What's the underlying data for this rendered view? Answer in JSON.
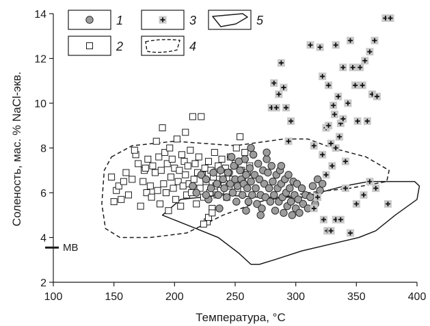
{
  "chart_data": {
    "type": "scatter",
    "xlabel": "Температура, °С",
    "ylabel": "Соленость, мас. % NaCl-экв.",
    "xlim": [
      100,
      400
    ],
    "ylim": [
      2,
      14
    ],
    "xticks": [
      "100",
      "150",
      "200",
      "250",
      "300",
      "350",
      "400"
    ],
    "yticks": [
      "2",
      "4",
      "6",
      "8",
      "10",
      "12",
      "14"
    ],
    "grid": false,
    "legend": {
      "placement": "top-left",
      "entries": [
        "1",
        "2",
        "3",
        "4",
        "5"
      ]
    },
    "reference_marks": [
      {
        "label": "МВ",
        "y": 3.55
      }
    ],
    "series": [
      {
        "name": "1",
        "marker": "circle",
        "points": [
          [
            215,
            6.3
          ],
          [
            218,
            6.0
          ],
          [
            222,
            6.8
          ],
          [
            226,
            6.6
          ],
          [
            228,
            5.7
          ],
          [
            230,
            6.2
          ],
          [
            232,
            6.9
          ],
          [
            235,
            6.4
          ],
          [
            236,
            5.9
          ],
          [
            238,
            7.0
          ],
          [
            240,
            6.6
          ],
          [
            241,
            6.2
          ],
          [
            243,
            5.8
          ],
          [
            245,
            6.9
          ],
          [
            246,
            6.4
          ],
          [
            248,
            6.0
          ],
          [
            249,
            7.2
          ],
          [
            250,
            6.6
          ],
          [
            251,
            5.6
          ],
          [
            252,
            6.3
          ],
          [
            254,
            7.0
          ],
          [
            255,
            6.6
          ],
          [
            256,
            5.9
          ],
          [
            257,
            6.4
          ],
          [
            258,
            7.5
          ],
          [
            259,
            6.8
          ],
          [
            260,
            6.2
          ],
          [
            261,
            5.6
          ],
          [
            262,
            7.1
          ],
          [
            263,
            6.5
          ],
          [
            264,
            5.9
          ],
          [
            265,
            7.7
          ],
          [
            266,
            6.8
          ],
          [
            267,
            6.2
          ],
          [
            268,
            5.5
          ],
          [
            269,
            7.3
          ],
          [
            270,
            6.6
          ],
          [
            271,
            5.9
          ],
          [
            272,
            5.3
          ],
          [
            273,
            7.0
          ],
          [
            274,
            6.4
          ],
          [
            275,
            5.8
          ],
          [
            276,
            7.5
          ],
          [
            277,
            6.9
          ],
          [
            278,
            6.2
          ],
          [
            279,
            5.6
          ],
          [
            280,
            7.2
          ],
          [
            281,
            6.5
          ],
          [
            282,
            5.9
          ],
          [
            283,
            5.2
          ],
          [
            284,
            6.8
          ],
          [
            285,
            6.2
          ],
          [
            286,
            5.6
          ],
          [
            287,
            7.0
          ],
          [
            288,
            6.4
          ],
          [
            289,
            5.8
          ],
          [
            290,
            5.1
          ],
          [
            291,
            6.6
          ],
          [
            292,
            6.0
          ],
          [
            293,
            5.4
          ],
          [
            294,
            6.8
          ],
          [
            295,
            6.2
          ],
          [
            296,
            5.6
          ],
          [
            297,
            5.0
          ],
          [
            298,
            6.5
          ],
          [
            299,
            5.9
          ],
          [
            300,
            5.3
          ],
          [
            301,
            6.4
          ],
          [
            302,
            5.7
          ],
          [
            303,
            5.1
          ],
          [
            305,
            6.2
          ],
          [
            306,
            5.5
          ],
          [
            308,
            5.9
          ],
          [
            310,
            5.3
          ],
          [
            312,
            5.8
          ],
          [
            314,
            6.3
          ],
          [
            316,
            5.5
          ],
          [
            318,
            6.6
          ],
          [
            320,
            6.1
          ],
          [
            322,
            6.4
          ],
          [
            247,
            7.6
          ],
          [
            253,
            7.4
          ],
          [
            263,
            8.0
          ],
          [
            276,
            7.8
          ],
          [
            288,
            7.2
          ],
          [
            259,
            5.2
          ],
          [
            271,
            5.0
          ],
          [
            237,
            5.3
          ],
          [
            244,
            6.9
          ],
          [
            226,
            5.9
          ]
        ]
      },
      {
        "name": "2",
        "marker": "square",
        "points": [
          [
            148,
            6.7
          ],
          [
            150,
            5.6
          ],
          [
            152,
            6.1
          ],
          [
            154,
            6.3
          ],
          [
            156,
            5.7
          ],
          [
            158,
            6.5
          ],
          [
            160,
            6.9
          ],
          [
            162,
            5.9
          ],
          [
            165,
            6.6
          ],
          [
            168,
            7.7
          ],
          [
            170,
            7.3
          ],
          [
            172,
            5.4
          ],
          [
            174,
            6.5
          ],
          [
            175,
            7.0
          ],
          [
            177,
            6.0
          ],
          [
            178,
            7.5
          ],
          [
            180,
            6.3
          ],
          [
            181,
            5.8
          ],
          [
            182,
            7.2
          ],
          [
            184,
            6.9
          ],
          [
            185,
            8.3
          ],
          [
            186,
            6.1
          ],
          [
            187,
            7.6
          ],
          [
            188,
            5.5
          ],
          [
            189,
            7.0
          ],
          [
            190,
            8.9
          ],
          [
            191,
            6.4
          ],
          [
            192,
            7.8
          ],
          [
            193,
            6.0
          ],
          [
            194,
            7.3
          ],
          [
            195,
            5.2
          ],
          [
            196,
            8.0
          ],
          [
            197,
            6.7
          ],
          [
            198,
            7.5
          ],
          [
            199,
            6.2
          ],
          [
            200,
            7.1
          ],
          [
            201,
            5.7
          ],
          [
            202,
            8.4
          ],
          [
            203,
            6.5
          ],
          [
            204,
            7.0
          ],
          [
            205,
            5.4
          ],
          [
            206,
            7.7
          ],
          [
            207,
            6.3
          ],
          [
            208,
            7.4
          ],
          [
            209,
            6.8
          ],
          [
            210,
            5.9
          ],
          [
            211,
            7.2
          ],
          [
            212,
            6.4
          ],
          [
            213,
            7.9
          ],
          [
            214,
            6.0
          ],
          [
            215,
            9.4
          ],
          [
            216,
            6.6
          ],
          [
            217,
            7.3
          ],
          [
            218,
            5.5
          ],
          [
            219,
            6.9
          ],
          [
            220,
            7.6
          ],
          [
            221,
            6.2
          ],
          [
            222,
            9.4
          ],
          [
            223,
            6.8
          ],
          [
            224,
            5.8
          ],
          [
            225,
            7.1
          ],
          [
            226,
            6.5
          ],
          [
            227,
            4.7
          ],
          [
            228,
            7.4
          ],
          [
            229,
            6.0
          ],
          [
            230,
            7.0
          ],
          [
            231,
            5.3
          ],
          [
            232,
            6.7
          ],
          [
            233,
            7.8
          ],
          [
            234,
            6.3
          ],
          [
            235,
            5.9
          ],
          [
            236,
            7.2
          ],
          [
            237,
            6.6
          ],
          [
            238,
            6.1
          ],
          [
            239,
            7.5
          ],
          [
            240,
            6.8
          ],
          [
            241,
            6.4
          ],
          [
            242,
            7.1
          ],
          [
            243,
            5.8
          ],
          [
            244,
            6.9
          ],
          [
            245,
            6.3
          ],
          [
            246,
            7.6
          ],
          [
            248,
            6.6
          ],
          [
            250,
            7.3
          ],
          [
            251,
            8.0
          ],
          [
            252,
            6.2
          ],
          [
            254,
            8.5
          ],
          [
            255,
            7.0
          ],
          [
            256,
            6.5
          ],
          [
            258,
            7.8
          ],
          [
            260,
            6.9
          ],
          [
            262,
            7.2
          ],
          [
            228,
            4.9
          ],
          [
            224,
            4.6
          ],
          [
            231,
            5.1
          ],
          [
            167,
            7.9
          ],
          [
            176,
            7.1
          ],
          [
            209,
            8.7
          ]
        ]
      },
      {
        "name": "3",
        "marker": "plus",
        "points": [
          [
            280,
            9.8
          ],
          [
            282,
            10.9
          ],
          [
            284,
            9.8
          ],
          [
            286,
            10.4
          ],
          [
            288,
            11.8
          ],
          [
            290,
            10.7
          ],
          [
            292,
            9.8
          ],
          [
            294,
            8.3
          ],
          [
            296,
            9.2
          ],
          [
            312,
            12.6
          ],
          [
            315,
            8.1
          ],
          [
            320,
            12.5
          ],
          [
            322,
            11.2
          ],
          [
            325,
            8.9
          ],
          [
            327,
            10.8
          ],
          [
            329,
            8.2
          ],
          [
            331,
            9.9
          ],
          [
            333,
            12.6
          ],
          [
            335,
            10.3
          ],
          [
            337,
            9.1
          ],
          [
            339,
            11.6
          ],
          [
            341,
            7.4
          ],
          [
            343,
            10.0
          ],
          [
            345,
            12.8
          ],
          [
            347,
            11.6
          ],
          [
            349,
            10.8
          ],
          [
            351,
            9.2
          ],
          [
            353,
            11.6
          ],
          [
            355,
            10.8
          ],
          [
            357,
            11.9
          ],
          [
            359,
            9.2
          ],
          [
            361,
            12.3
          ],
          [
            363,
            10.4
          ],
          [
            365,
            12.8
          ],
          [
            367,
            10.3
          ],
          [
            374,
            13.8
          ],
          [
            378,
            13.8
          ],
          [
            323,
            4.8
          ],
          [
            326,
            4.3
          ],
          [
            329,
            4.3
          ],
          [
            333,
            4.8
          ],
          [
            337,
            4.8
          ],
          [
            341,
            6.2
          ],
          [
            345,
            4.2
          ],
          [
            350,
            5.5
          ],
          [
            356,
            5.9
          ],
          [
            361,
            6.5
          ],
          [
            366,
            6.2
          ],
          [
            376,
            5.5
          ],
          [
            315,
            5.3
          ],
          [
            318,
            5.8
          ],
          [
            322,
            7.7
          ],
          [
            325,
            6.8
          ],
          [
            330,
            7.2
          ],
          [
            333,
            8.0
          ],
          [
            336,
            8.5
          ],
          [
            339,
            9.3
          ],
          [
            327,
            9.0
          ],
          [
            332,
            9.5
          ]
        ]
      }
    ],
    "fields": [
      {
        "name": "4",
        "style": "dashed",
        "outline": [
          [
            148,
            7.6
          ],
          [
            165,
            8.1
          ],
          [
            200,
            8.3
          ],
          [
            250,
            8.1
          ],
          [
            290,
            8.4
          ],
          [
            310,
            8.4
          ],
          [
            330,
            8.0
          ],
          [
            358,
            7.6
          ],
          [
            377,
            7.0
          ],
          [
            375,
            6.5
          ],
          [
            345,
            6.2
          ],
          [
            310,
            6.0
          ],
          [
            270,
            5.6
          ],
          [
            240,
            5.0
          ],
          [
            210,
            4.2
          ],
          [
            180,
            4.0
          ],
          [
            155,
            4.0
          ],
          [
            143,
            4.4
          ],
          [
            140,
            5.5
          ],
          [
            142,
            7.0
          ]
        ]
      },
      {
        "name": "5",
        "style": "solid",
        "outline": [
          [
            305,
            5.8
          ],
          [
            340,
            6.3
          ],
          [
            360,
            6.5
          ],
          [
            398,
            6.5
          ],
          [
            402,
            6.3
          ],
          [
            400,
            5.7
          ],
          [
            382,
            5.0
          ],
          [
            366,
            4.3
          ],
          [
            352,
            4.0
          ],
          [
            305,
            3.4
          ],
          [
            282,
            3.0
          ],
          [
            270,
            2.8
          ],
          [
            263,
            2.8
          ],
          [
            253,
            3.3
          ],
          [
            236,
            4.0
          ],
          [
            213,
            4.5
          ],
          [
            190,
            5.0
          ],
          [
            205,
            5.7
          ],
          [
            240,
            5.9
          ],
          [
            270,
            5.8
          ]
        ]
      }
    ]
  }
}
